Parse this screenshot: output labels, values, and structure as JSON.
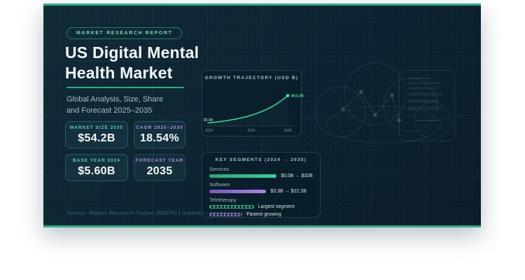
{
  "report": {
    "badge": "MARKET RESEARCH REPORT",
    "title_line1": "US Digital Mental",
    "title_line2": "Health Market",
    "subtitle_line1": "Global Analysis, Size, Share",
    "subtitle_line2": "and Forecast 2025–2035",
    "source": "Source: Market Research Future (MRFR) | marketresearchfuture.com"
  },
  "stats": [
    {
      "label": "MARKET SIZE 2035",
      "value": "$54.2B",
      "accent": "teal"
    },
    {
      "label": "CAGR 2025–2035",
      "value": "18.54%",
      "accent": "purple"
    },
    {
      "label": "BASE YEAR 2024",
      "value": "$5.60B",
      "accent": "teal"
    },
    {
      "label": "FORECAST YEAR",
      "value": "2035",
      "accent": "purple"
    }
  ],
  "chart_data": [
    {
      "type": "area",
      "title": "GROWTH TRAJECTORY (USD B)",
      "x": [
        2024,
        2030,
        2035
      ],
      "values": [
        5.6,
        19.5,
        54.2
      ],
      "x_ticks": [
        "2024",
        "2030",
        "2035"
      ],
      "start_label": "$5.6B",
      "end_label": "$54.2B",
      "xlabel": "",
      "ylabel": "USD Billions",
      "ylim": [
        0,
        60
      ],
      "grid": false,
      "legend": "none",
      "curve": "exponential"
    },
    {
      "type": "bar",
      "title": "KEY SEGMENTS (2024 → 2035)",
      "orientation": "horizontal",
      "rows": [
        {
          "label": "Services",
          "value_label": "$5.0B → $32B",
          "color": "green",
          "style": "solid",
          "width_pct": 65
        },
        {
          "label": "Software",
          "value_label": "$3.3B → $22.2B",
          "color": "purple",
          "style": "solid",
          "width_pct": 55
        },
        {
          "label": "Teletherapy",
          "value_label": "Largest segment",
          "color": "green",
          "style": "hatched",
          "width_pct": 43
        },
        {
          "label": "",
          "value_label": "Fastest growing",
          "color": "purple",
          "style": "hatched",
          "width_pct": 32
        }
      ]
    }
  ],
  "colors": {
    "page_bg": "#ffffff",
    "card_bg": "#0d2230",
    "accent_green": "#2fae85",
    "accent_purple": "#a886e3",
    "text_primary": "#f2f7f9",
    "text_muted": "#a9bdc8",
    "label_teal": "#5fd0ac",
    "label_purple": "#b493e6"
  },
  "decorations": {
    "icons": [
      "cloud-icon",
      "smartphone-icon"
    ]
  }
}
